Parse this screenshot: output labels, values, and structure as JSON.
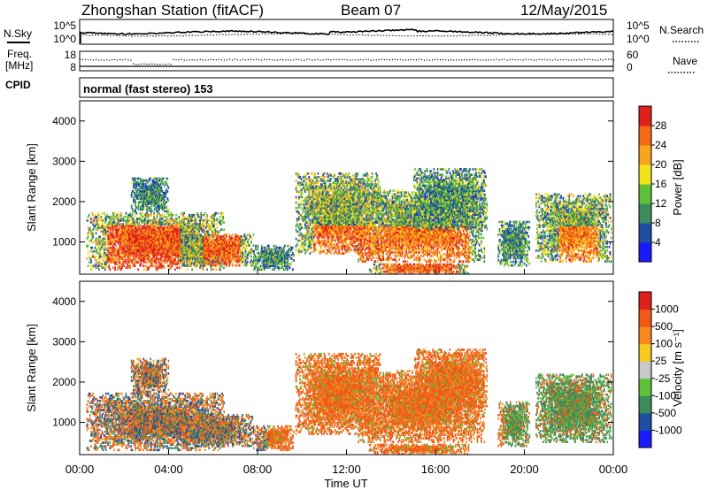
{
  "header": {
    "station": "Zhongshan Station (fitACF)",
    "beam": "Beam 07",
    "date": "12/May/2015"
  },
  "noise_panel": {
    "left_label": "N.Sky",
    "left_ticks": [
      "10^5",
      "10^0"
    ],
    "right_label": "N.Search",
    "right_ticks": [
      "10^5",
      "10^0"
    ]
  },
  "freq_panel": {
    "left_label_line1": "Freq.",
    "left_label_line2": "[MHz]",
    "left_ticks": [
      "18",
      "8"
    ],
    "right_label": "Nave",
    "right_ticks": [
      "60",
      "0"
    ]
  },
  "cpid_panel": {
    "label": "CPID",
    "text": "normal (fast stereo) 153"
  },
  "x_axis": {
    "ticks": [
      "00:00",
      "04:00",
      "08:00",
      "12:00",
      "16:00",
      "20:00",
      "00:00"
    ],
    "label": "Time UT"
  },
  "chart_data": [
    {
      "type": "heatmap",
      "name": "power",
      "ylabel": "Slant Range [km]",
      "yticks": [
        "1000",
        "2000",
        "3000",
        "4000"
      ],
      "colorbar_label": "Power [dB]",
      "colorbar_ticks": [
        "4",
        "8",
        "12",
        "16",
        "20",
        "24",
        "28"
      ],
      "colors": [
        "#1a1aff",
        "#1e4fa0",
        "#3e8c5c",
        "#5fc03a",
        "#f2e31a",
        "#f7a41e",
        "#f36a18",
        "#e0201b"
      ],
      "xlim": [
        0,
        24
      ],
      "ylim": [
        200,
        4500
      ]
    },
    {
      "type": "heatmap",
      "name": "velocity",
      "ylabel": "Slant Range [km]",
      "yticks": [
        "1000",
        "2000",
        "3000",
        "4000"
      ],
      "colorbar_label": "Velocity [m s⁻¹]",
      "colorbar_ticks": [
        "1000",
        "500",
        "100",
        "25",
        "-25",
        "-100",
        "-500",
        "-1000"
      ],
      "colors": [
        "#1a1aff",
        "#1e4fa0",
        "#3e8c5c",
        "#5fc03a",
        "#c8c8c8",
        "#f7c81e",
        "#f78a1e",
        "#f05a18",
        "#e0201b"
      ],
      "xlim": [
        0,
        24
      ],
      "ylim": [
        200,
        4500
      ]
    }
  ]
}
